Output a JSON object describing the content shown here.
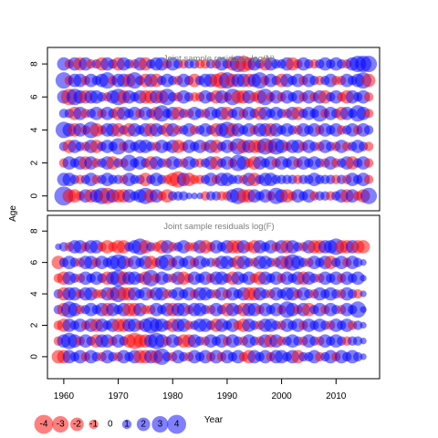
{
  "chart_data": {
    "type": "scatter",
    "subtype": "bubble",
    "ylabel": "Age",
    "xlabel": "Year",
    "xlim": [
      1957,
      2018
    ],
    "x_ticks": [
      1960,
      1970,
      1980,
      1990,
      2000,
      2010
    ],
    "y_ticks": [
      0,
      2,
      4,
      6,
      8
    ],
    "colors": {
      "positive": "#0000ff",
      "negative": "#ff0000",
      "alpha": 0.5
    },
    "grid": false,
    "panels": [
      {
        "id": "N",
        "title": "Joint sample residuals log(N)",
        "ylim": [
          -0.9,
          9.0
        ],
        "ages": [
          0,
          1,
          2,
          3,
          4,
          5,
          6,
          7,
          8
        ],
        "years": [
          1960,
          2016
        ],
        "residuals_by_age": [
          [
            4,
            -2,
            -2,
            -1,
            2,
            -2,
            2,
            3,
            -3,
            2,
            -2,
            -2,
            2,
            1,
            2,
            3,
            -2,
            2,
            -1,
            -2,
            1,
            1,
            1,
            0.5,
            0.5,
            0.5,
            -1,
            1,
            1,
            -1,
            -1,
            2,
            3,
            -2,
            -2,
            2,
            1,
            2,
            -1,
            3,
            2,
            -2,
            -1,
            2,
            1,
            2,
            -1,
            1,
            1,
            -1,
            1,
            2,
            -2,
            2,
            -1,
            -2,
            3
          ],
          [
            2,
            2,
            1,
            -1,
            1,
            2,
            -1,
            1,
            2,
            1,
            1,
            -1,
            2,
            1,
            1,
            -2,
            1,
            2,
            1,
            -1,
            -2,
            -3,
            2,
            -2,
            -1,
            -1,
            1,
            2,
            -1,
            2,
            2,
            1,
            1,
            -1,
            2,
            -2,
            1,
            2,
            2,
            1,
            1,
            1,
            1,
            -1,
            1,
            1,
            2,
            1,
            1,
            1,
            -1,
            1,
            -1,
            2,
            1,
            2,
            -1
          ],
          [
            -1,
            2,
            1,
            2,
            -2,
            2,
            -1,
            1,
            2,
            -2,
            1,
            -1,
            3,
            1,
            2,
            1,
            -2,
            2,
            1,
            -1,
            2,
            1,
            -1,
            2,
            1,
            -1,
            1,
            2,
            -2,
            1,
            2,
            -1,
            3,
            2,
            -1,
            -2,
            2,
            1,
            2,
            -1,
            2,
            1,
            2,
            -1,
            2,
            1,
            2,
            1,
            -1,
            2,
            -1,
            1,
            2,
            -2,
            1,
            2,
            -1
          ],
          [
            1,
            -2,
            2,
            1,
            -1,
            2,
            -2,
            1,
            2,
            1,
            3,
            -1,
            2,
            1,
            2,
            2,
            1,
            -1,
            2,
            1,
            2,
            -2,
            -1,
            2,
            1,
            2,
            -1,
            2,
            -2,
            1,
            2,
            -1,
            3,
            -2,
            2,
            -2,
            -2,
            3,
            -2,
            3,
            2,
            -1,
            2,
            2,
            -1,
            2,
            1,
            -1,
            2,
            1,
            -1,
            2,
            -1,
            1,
            2,
            1,
            -1
          ],
          [
            3,
            2,
            -2,
            2,
            -1,
            3,
            -2,
            -1,
            2,
            2,
            -2,
            1,
            -2,
            2,
            1,
            2,
            -2,
            2,
            1,
            -2,
            2,
            -1,
            1,
            2,
            -1,
            1,
            2,
            1,
            -2,
            2,
            3,
            -2,
            2,
            1,
            2,
            -1,
            2,
            2,
            -2,
            2,
            1,
            2,
            1,
            -1,
            2,
            1,
            2,
            -1,
            2,
            1,
            2,
            -1,
            1,
            2,
            -1,
            2,
            1
          ],
          [
            1,
            1,
            -2,
            2,
            -1,
            1,
            2,
            -1,
            2,
            1,
            -2,
            2,
            1,
            2,
            -1,
            2,
            1,
            -2,
            3,
            1,
            2,
            -2,
            1,
            -1,
            2,
            1,
            -1,
            2,
            1,
            2,
            -2,
            1,
            2,
            -1,
            2,
            1,
            -2,
            2,
            1,
            2,
            1,
            -1,
            2,
            -2,
            1,
            2,
            1,
            3,
            -1,
            2,
            1,
            -2,
            2,
            1,
            3,
            2,
            -1
          ],
          [
            2,
            -3,
            3,
            2,
            -2,
            2,
            2,
            1,
            -1,
            2,
            3,
            -2,
            2,
            1,
            2,
            -2,
            -2,
            2,
            -2,
            3,
            1,
            -1,
            2,
            1,
            -1,
            -1,
            2,
            1,
            -2,
            2,
            -1,
            3,
            -2,
            -2,
            2,
            -1,
            -2,
            3,
            -1,
            2,
            -1,
            2,
            1,
            2,
            -1,
            2,
            -1,
            2,
            -2,
            1,
            2,
            -1,
            -2,
            2,
            1,
            2,
            -1
          ],
          [
            3,
            -1,
            2,
            2,
            -1,
            2,
            1,
            2,
            3,
            -1,
            2,
            2,
            -2,
            3,
            1,
            -2,
            2,
            -2,
            1,
            2,
            1,
            -1,
            2,
            1,
            -2,
            1,
            2,
            2,
            -2,
            -3,
            3,
            -2,
            2,
            2,
            -2,
            2,
            3,
            -1,
            2,
            1,
            -2,
            2,
            1,
            2,
            -1,
            2,
            1,
            -1,
            1,
            2,
            -1,
            -1,
            2,
            1,
            2,
            3,
            -2
          ],
          [
            2,
            -1,
            2,
            -2,
            2,
            -1,
            1,
            -2,
            2,
            1,
            -2,
            2,
            1,
            -1,
            2,
            -2,
            1,
            2,
            2,
            -1,
            2,
            1,
            -1,
            1,
            1,
            -1,
            -1,
            1,
            -1,
            2,
            1,
            -2,
            3,
            -3,
            -2,
            2,
            1,
            -2,
            2,
            1,
            1,
            2,
            -2,
            -1,
            2,
            1,
            -1,
            1,
            2,
            1,
            2,
            1,
            -1,
            2,
            3,
            3,
            3
          ]
        ]
      },
      {
        "id": "F",
        "title": "Joint sample residuals log(F)",
        "ylim": [
          -1.4,
          9.0
        ],
        "ages": [
          0,
          1,
          2,
          3,
          4,
          5,
          6,
          7
        ],
        "years": [
          1959,
          2015
        ],
        "residuals_by_age": [
          [
            -2,
            -2,
            2,
            1,
            2,
            -1,
            2,
            1,
            -1,
            2,
            1,
            -1,
            2,
            1,
            2,
            -2,
            -2,
            2,
            -2,
            3,
            1,
            -1,
            2,
            1,
            -1,
            2,
            1,
            2,
            -1,
            2,
            -1,
            2,
            1,
            2,
            -1,
            -2,
            2,
            1,
            2,
            -1,
            2,
            2,
            1,
            2,
            -2,
            1,
            1,
            2,
            -1,
            1,
            2,
            -1,
            2,
            1,
            2,
            1,
            0.5
          ],
          [
            -1,
            2,
            3,
            2,
            -1,
            2,
            1,
            -2,
            2,
            2,
            -1,
            2,
            1,
            -2,
            -3,
            -2,
            -2,
            2,
            3,
            2,
            -1,
            2,
            1,
            -2,
            -2,
            2,
            1,
            -1,
            2,
            1,
            2,
            -1,
            2,
            1,
            -1,
            2,
            1,
            -1,
            2,
            -2,
            2,
            -1,
            1,
            2,
            1,
            -1,
            2,
            1,
            -1,
            2,
            1,
            2,
            1,
            -1,
            1,
            1,
            0.5
          ],
          [
            -1,
            -2,
            2,
            1,
            2,
            -1,
            2,
            -2,
            2,
            1,
            2,
            -2,
            -2,
            2,
            2,
            -1,
            2,
            3,
            2,
            2,
            1,
            -2,
            2,
            2,
            -1,
            1,
            2,
            2,
            1,
            -2,
            2,
            1,
            2,
            -1,
            -2,
            2,
            1,
            -1,
            2,
            2,
            1,
            -1,
            2,
            1,
            2,
            -1,
            2,
            1,
            2,
            1,
            -1,
            2,
            1,
            2,
            -1,
            1,
            0.5
          ],
          [
            1,
            -2,
            3,
            2,
            -1,
            1,
            2,
            1,
            2,
            -2,
            2,
            1,
            2,
            -2,
            -2,
            2,
            -1,
            -1,
            2,
            1,
            2,
            -2,
            2,
            2,
            -1,
            2,
            2,
            1,
            -1,
            2,
            1,
            -2,
            2,
            1,
            -2,
            2,
            2,
            -1,
            2,
            1,
            2,
            -1,
            3,
            2,
            -1,
            2,
            -2,
            1,
            2,
            -1,
            2,
            1,
            -1,
            2,
            1,
            3,
            0.5
          ],
          [
            1,
            -2,
            2,
            2,
            -1,
            2,
            2,
            -1,
            -1,
            2,
            -2,
            3,
            -2,
            -2,
            2,
            1,
            2,
            -1,
            2,
            2,
            -1,
            1,
            2,
            1,
            2,
            -1,
            2,
            2,
            1,
            -1,
            2,
            -1,
            2,
            1,
            2,
            -2,
            -2,
            2,
            1,
            -1,
            2,
            1,
            2,
            2,
            -1,
            2,
            1,
            -1,
            2,
            1,
            2,
            1,
            -1,
            2,
            1,
            -1,
            0.5
          ],
          [
            -1,
            -2,
            2,
            1,
            -1,
            2,
            1,
            2,
            1,
            -2,
            2,
            3,
            -2,
            2,
            2,
            1,
            -2,
            3,
            -1,
            2,
            1,
            -1,
            2,
            -2,
            -1,
            2,
            1,
            2,
            -1,
            2,
            2,
            1,
            -2,
            2,
            1,
            2,
            -1,
            -2,
            2,
            1,
            2,
            -1,
            2,
            1,
            2,
            -2,
            2,
            1,
            -1,
            2,
            1,
            2,
            -1,
            2,
            1,
            2,
            0.5
          ],
          [
            -2,
            1,
            2,
            1,
            -1,
            2,
            2,
            -1,
            2,
            1,
            2,
            3,
            2,
            -1,
            2,
            1,
            2,
            -2,
            -1,
            2,
            3,
            -1,
            2,
            1,
            2,
            -1,
            2,
            1,
            1,
            -1,
            2,
            2,
            1,
            -2,
            2,
            1,
            -1,
            2,
            2,
            1,
            -1,
            2,
            -2,
            3,
            2,
            1,
            -1,
            2,
            1,
            2,
            -2,
            1,
            2,
            -1,
            2,
            1,
            0.5
          ],
          [
            0.5,
            1,
            -1,
            2,
            2,
            -1,
            2,
            2,
            -1,
            -2,
            -1,
            -2,
            -2,
            1,
            2,
            3,
            -2,
            1,
            -1,
            -2,
            2,
            -1,
            1,
            2,
            -1,
            -1,
            2,
            -2,
            -1,
            2,
            1,
            2,
            -2,
            -2,
            2,
            -1,
            -2,
            2,
            1,
            2,
            -1,
            2,
            -2,
            2,
            1,
            -1,
            2,
            -2,
            -2,
            2,
            2,
            3,
            -2,
            -2,
            2,
            -2,
            -2
          ]
        ]
      }
    ],
    "legend": {
      "placement": "bottom-left",
      "values": [
        -4,
        -3,
        -2,
        -1,
        0,
        1,
        2,
        3,
        4
      ],
      "labels": [
        "-4",
        "-3",
        "-2",
        "-1",
        "0",
        "1",
        "2",
        "3",
        "4"
      ]
    }
  }
}
